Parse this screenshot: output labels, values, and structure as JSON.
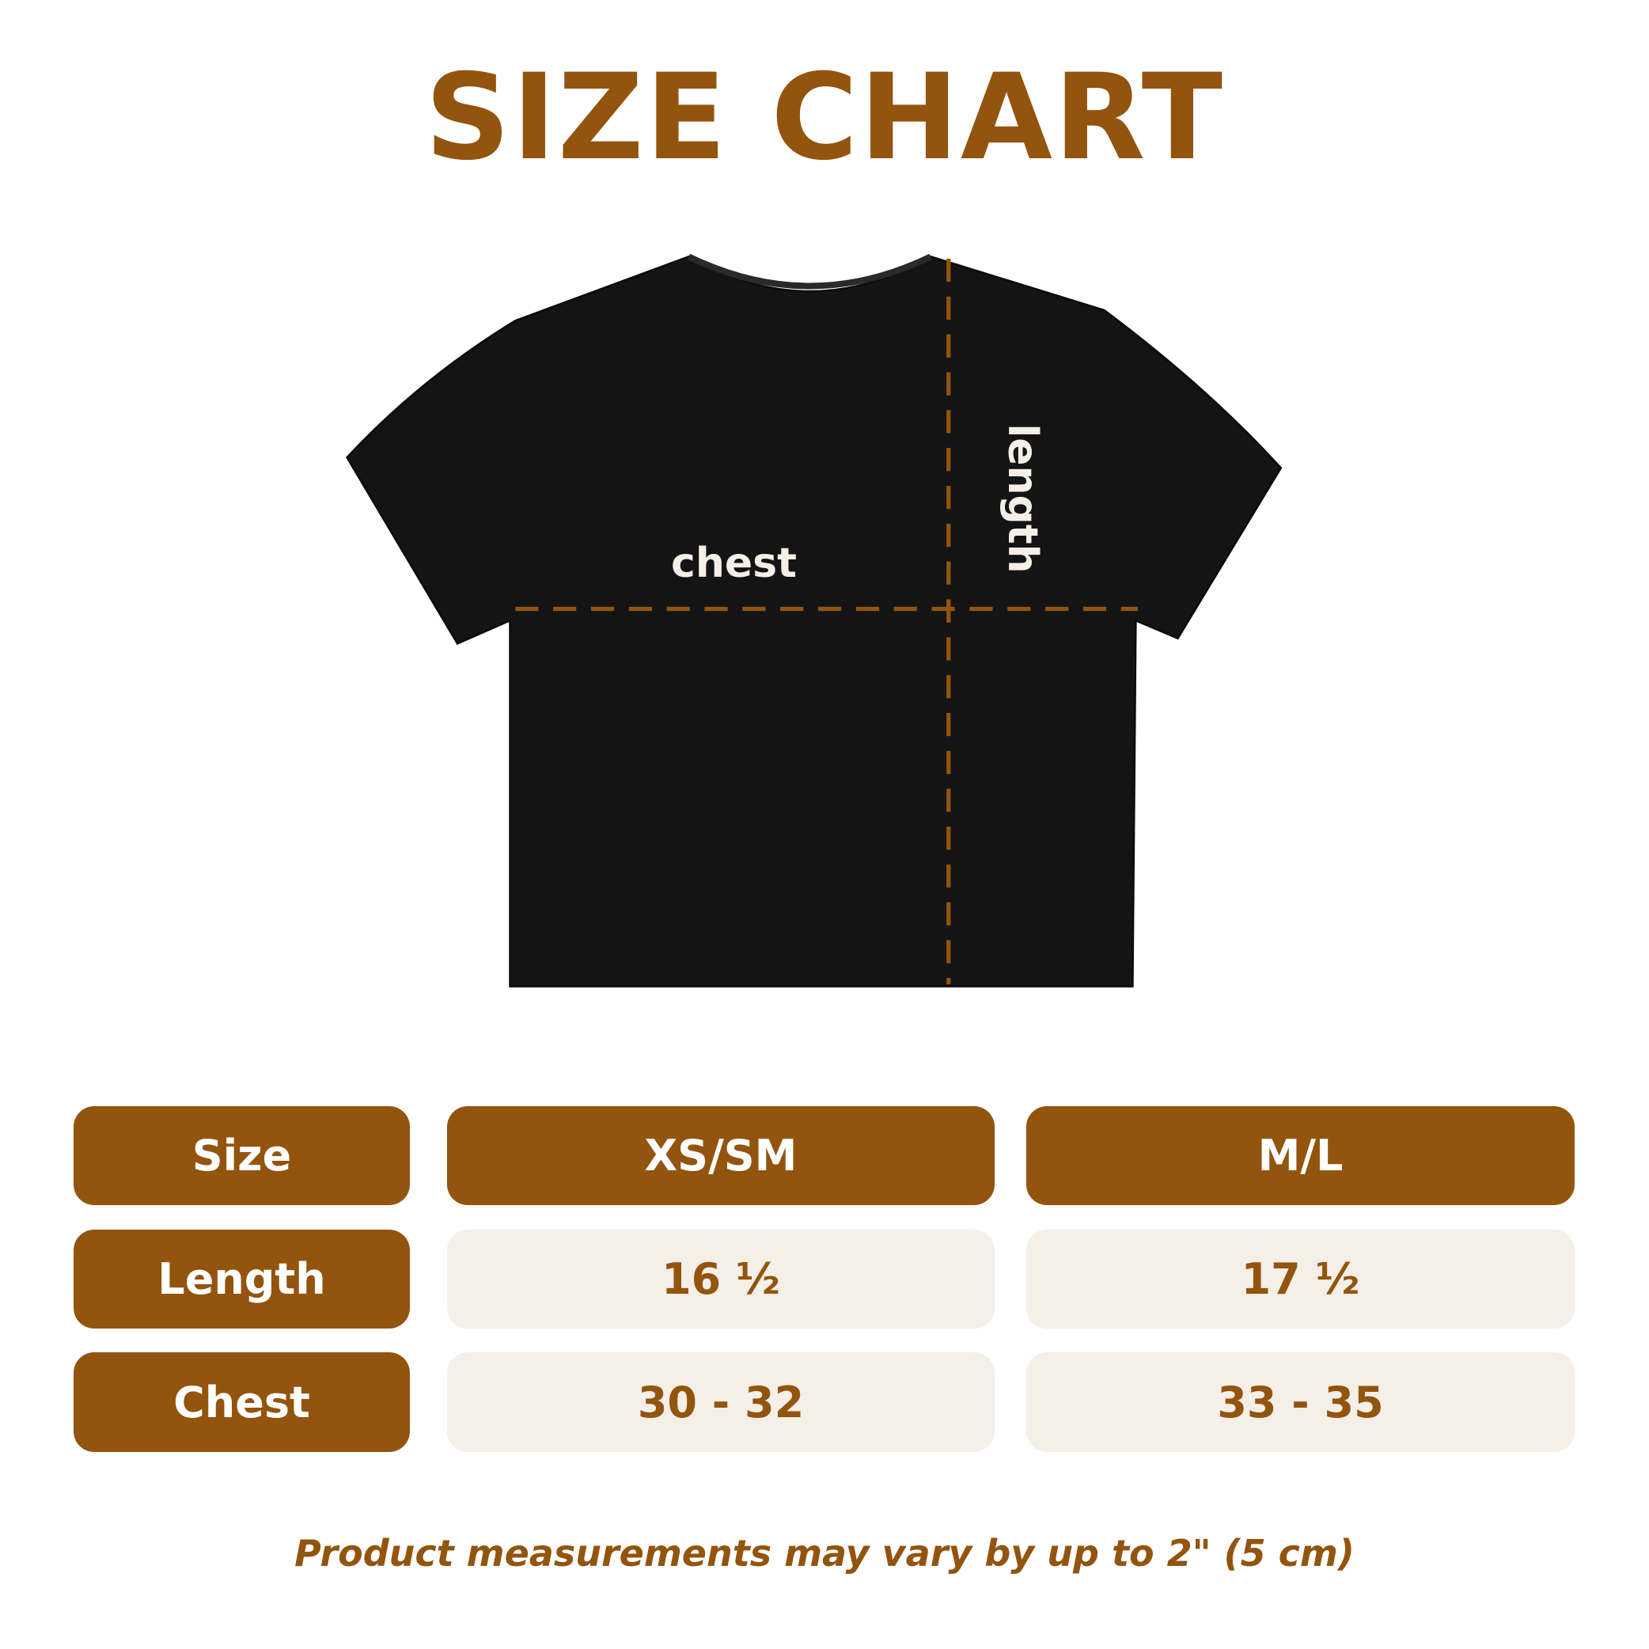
{
  "title": "SIZE CHART",
  "diagram": {
    "chest_label": "chest",
    "length_label": "length",
    "shirt_color": "#141414",
    "guide_color": "#93540e"
  },
  "table": {
    "header": [
      "Size",
      "XS/SM",
      "M/L"
    ],
    "rows": [
      {
        "label": "Length",
        "values": [
          "16 ½",
          "17 ½"
        ]
      },
      {
        "label": "Chest",
        "values": [
          "30 - 32",
          "33 - 35"
        ]
      }
    ]
  },
  "note": "Product measurements may vary by up to 2\" (5 cm)",
  "colors": {
    "accent": "#93540e",
    "cell_bg": "#f4efe7"
  }
}
